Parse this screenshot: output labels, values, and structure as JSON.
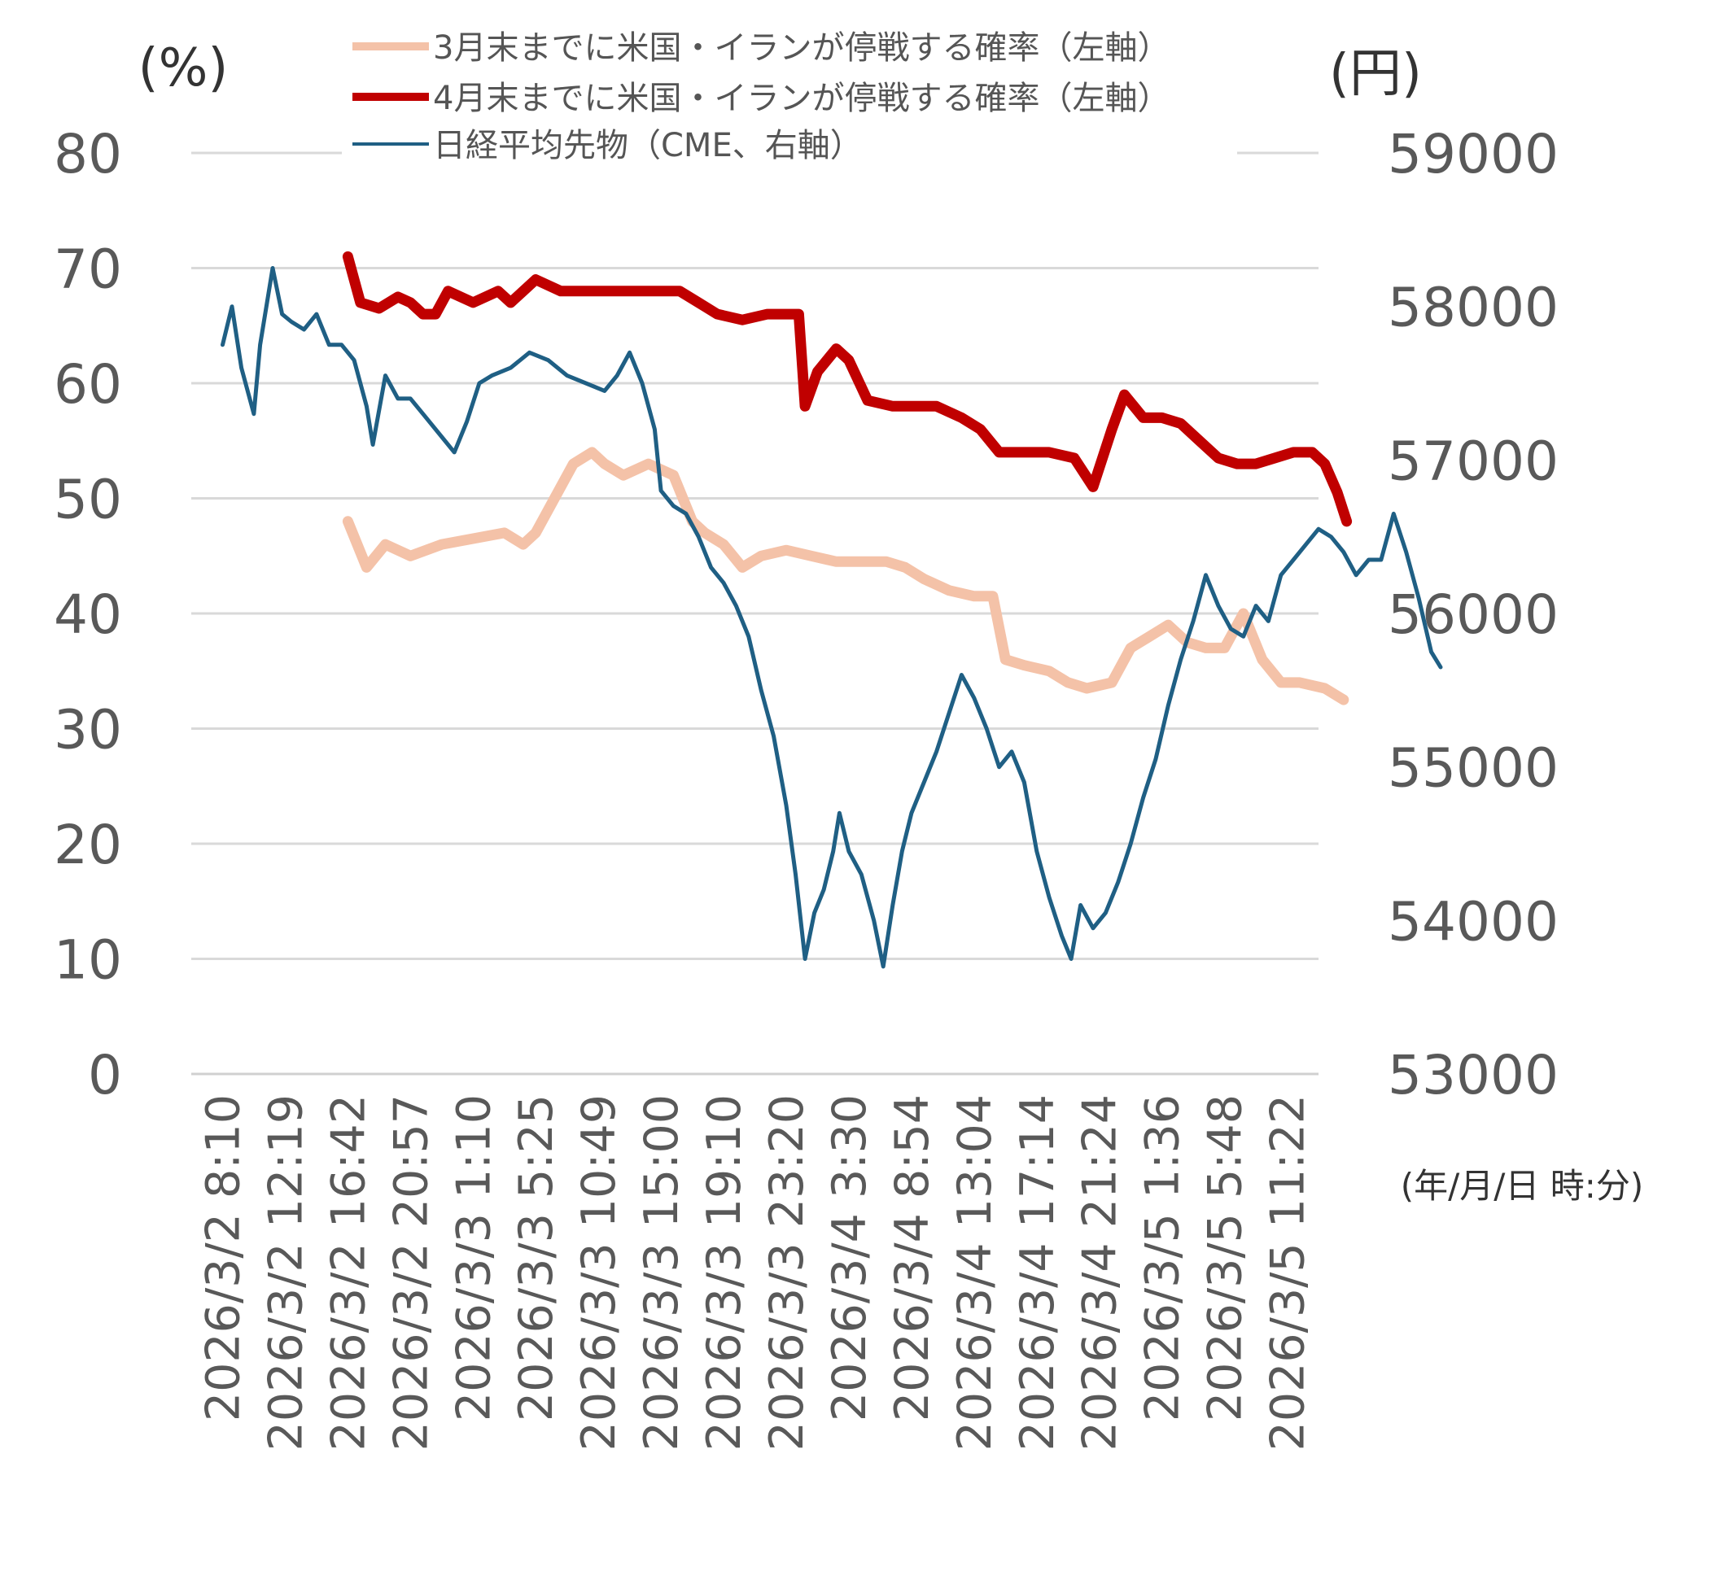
{
  "chart_data": {
    "type": "line",
    "left_axis_unit": "(%)",
    "right_axis_unit": "(円)",
    "x_axis_unit": "(年/月/日 時:分)",
    "left_axis": {
      "min": 0,
      "max": 80,
      "ticks": [
        "0",
        "10",
        "20",
        "30",
        "40",
        "50",
        "60",
        "70",
        "80"
      ]
    },
    "right_axis": {
      "min": 53000,
      "max": 59000,
      "ticks": [
        "53000",
        "54000",
        "55000",
        "56000",
        "57000",
        "58000",
        "59000"
      ]
    },
    "x_tick_labels": [
      "2026/3/2 8:10",
      "2026/3/2 12:19",
      "2026/3/2 16:42",
      "2026/3/2 20:57",
      "2026/3/3 1:10",
      "2026/3/3 5:25",
      "2026/3/3 10:49",
      "2026/3/3 15:00",
      "2026/3/3 19:10",
      "2026/3/3 23:20",
      "2026/3/4 3:30",
      "2026/3/4 8:54",
      "2026/3/4 13:04",
      "2026/3/4 17:14",
      "2026/3/4 21:24",
      "2026/3/5 1:36",
      "2026/3/5 5:48",
      "2026/3/5 11:22"
    ],
    "grid": true,
    "legend_position": "top",
    "series": [
      {
        "name": "3月末までに米国・イランが停戦する確率（左軸）",
        "axis": "left",
        "color": "#F4C2A8",
        "points": [
          [
            2.0,
            48
          ],
          [
            2.3,
            44
          ],
          [
            2.6,
            46
          ],
          [
            3.0,
            45
          ],
          [
            3.5,
            46
          ],
          [
            4.0,
            46.5
          ],
          [
            4.5,
            47
          ],
          [
            4.8,
            46
          ],
          [
            5.0,
            47
          ],
          [
            5.3,
            50
          ],
          [
            5.6,
            53
          ],
          [
            5.9,
            54
          ],
          [
            6.1,
            53
          ],
          [
            6.4,
            52
          ],
          [
            6.8,
            53
          ],
          [
            7.2,
            52
          ],
          [
            7.5,
            48
          ],
          [
            7.7,
            47
          ],
          [
            8.0,
            46
          ],
          [
            8.3,
            44
          ],
          [
            8.6,
            45
          ],
          [
            9.0,
            45.5
          ],
          [
            9.4,
            45
          ],
          [
            9.8,
            44.5
          ],
          [
            10.2,
            44.5
          ],
          [
            10.6,
            44.5
          ],
          [
            10.9,
            44
          ],
          [
            11.2,
            43
          ],
          [
            11.6,
            42
          ],
          [
            12.0,
            41.5
          ],
          [
            12.3,
            41.5
          ],
          [
            12.5,
            36
          ],
          [
            12.8,
            35.5
          ],
          [
            13.2,
            35
          ],
          [
            13.5,
            34
          ],
          [
            13.8,
            33.5
          ],
          [
            14.2,
            34
          ],
          [
            14.5,
            37
          ],
          [
            14.8,
            38
          ],
          [
            15.1,
            39
          ],
          [
            15.4,
            37.5
          ],
          [
            15.7,
            37
          ],
          [
            16.0,
            37
          ],
          [
            16.3,
            40
          ],
          [
            16.6,
            36
          ],
          [
            16.9,
            34
          ],
          [
            17.2,
            34
          ],
          [
            17.6,
            33.5
          ],
          [
            17.9,
            32.5
          ]
        ]
      },
      {
        "name": "4月末までに米国・イランが停戦する確率（左軸）",
        "axis": "left",
        "color": "#C00000",
        "points": [
          [
            2.0,
            71
          ],
          [
            2.2,
            67
          ],
          [
            2.5,
            66.5
          ],
          [
            2.8,
            67.5
          ],
          [
            3.0,
            67
          ],
          [
            3.2,
            66
          ],
          [
            3.4,
            66
          ],
          [
            3.6,
            68
          ],
          [
            4.0,
            67
          ],
          [
            4.4,
            68
          ],
          [
            4.6,
            67
          ],
          [
            4.8,
            68
          ],
          [
            5.0,
            69
          ],
          [
            5.4,
            68
          ],
          [
            5.8,
            68
          ],
          [
            6.2,
            68
          ],
          [
            6.6,
            68
          ],
          [
            7.0,
            68
          ],
          [
            7.3,
            68
          ],
          [
            7.6,
            67
          ],
          [
            7.9,
            66
          ],
          [
            8.3,
            65.5
          ],
          [
            8.7,
            66
          ],
          [
            9.0,
            66
          ],
          [
            9.2,
            66
          ],
          [
            9.3,
            58
          ],
          [
            9.5,
            61
          ],
          [
            9.8,
            63
          ],
          [
            10.0,
            62
          ],
          [
            10.3,
            58.5
          ],
          [
            10.7,
            58
          ],
          [
            11.0,
            58
          ],
          [
            11.4,
            58
          ],
          [
            11.8,
            57
          ],
          [
            12.1,
            56
          ],
          [
            12.4,
            54
          ],
          [
            12.8,
            54
          ],
          [
            13.2,
            54
          ],
          [
            13.6,
            53.5
          ],
          [
            13.9,
            51
          ],
          [
            14.2,
            56
          ],
          [
            14.4,
            59
          ],
          [
            14.7,
            57
          ],
          [
            15.0,
            57
          ],
          [
            15.3,
            56.5
          ],
          [
            15.6,
            55
          ],
          [
            15.9,
            53.5
          ],
          [
            16.2,
            53
          ],
          [
            16.5,
            53
          ],
          [
            16.8,
            53.5
          ],
          [
            17.1,
            54
          ],
          [
            17.4,
            54
          ],
          [
            17.6,
            53
          ],
          [
            17.8,
            50.5
          ],
          [
            17.95,
            48
          ]
        ]
      },
      {
        "name": "日経平均先物（CME、右軸）",
        "axis": "right",
        "color": "#1F5F84",
        "points": [
          [
            0.0,
            57750
          ],
          [
            0.15,
            58000
          ],
          [
            0.3,
            57600
          ],
          [
            0.5,
            57300
          ],
          [
            0.6,
            57750
          ],
          [
            0.8,
            58250
          ],
          [
            0.95,
            57950
          ],
          [
            1.1,
            57900
          ],
          [
            1.3,
            57850
          ],
          [
            1.5,
            57950
          ],
          [
            1.7,
            57750
          ],
          [
            1.9,
            57750
          ],
          [
            2.1,
            57650
          ],
          [
            2.3,
            57350
          ],
          [
            2.4,
            57100
          ],
          [
            2.6,
            57550
          ],
          [
            2.8,
            57400
          ],
          [
            3.0,
            57400
          ],
          [
            3.2,
            57300
          ],
          [
            3.5,
            57150
          ],
          [
            3.7,
            57050
          ],
          [
            3.9,
            57250
          ],
          [
            4.1,
            57500
          ],
          [
            4.3,
            57550
          ],
          [
            4.6,
            57600
          ],
          [
            4.9,
            57700
          ],
          [
            5.2,
            57650
          ],
          [
            5.5,
            57550
          ],
          [
            5.8,
            57500
          ],
          [
            6.1,
            57450
          ],
          [
            6.3,
            57550
          ],
          [
            6.5,
            57700
          ],
          [
            6.7,
            57500
          ],
          [
            6.9,
            57200
          ],
          [
            7.0,
            56800
          ],
          [
            7.2,
            56700
          ],
          [
            7.4,
            56650
          ],
          [
            7.6,
            56500
          ],
          [
            7.8,
            56300
          ],
          [
            8.0,
            56200
          ],
          [
            8.2,
            56050
          ],
          [
            8.4,
            55850
          ],
          [
            8.6,
            55500
          ],
          [
            8.8,
            55200
          ],
          [
            9.0,
            54750
          ],
          [
            9.15,
            54300
          ],
          [
            9.3,
            53750
          ],
          [
            9.45,
            54050
          ],
          [
            9.6,
            54200
          ],
          [
            9.75,
            54450
          ],
          [
            9.85,
            54700
          ],
          [
            10.0,
            54450
          ],
          [
            10.2,
            54300
          ],
          [
            10.4,
            54000
          ],
          [
            10.55,
            53700
          ],
          [
            10.7,
            54100
          ],
          [
            10.85,
            54450
          ],
          [
            11.0,
            54700
          ],
          [
            11.2,
            54900
          ],
          [
            11.4,
            55100
          ],
          [
            11.6,
            55350
          ],
          [
            11.8,
            55600
          ],
          [
            12.0,
            55450
          ],
          [
            12.2,
            55250
          ],
          [
            12.4,
            55000
          ],
          [
            12.6,
            55100
          ],
          [
            12.8,
            54900
          ],
          [
            13.0,
            54450
          ],
          [
            13.2,
            54150
          ],
          [
            13.4,
            53900
          ],
          [
            13.55,
            53750
          ],
          [
            13.7,
            54100
          ],
          [
            13.9,
            53950
          ],
          [
            14.1,
            54050
          ],
          [
            14.3,
            54250
          ],
          [
            14.5,
            54500
          ],
          [
            14.7,
            54800
          ],
          [
            14.9,
            55050
          ],
          [
            15.1,
            55400
          ],
          [
            15.3,
            55700
          ],
          [
            15.5,
            55950
          ],
          [
            15.7,
            56250
          ],
          [
            15.9,
            56050
          ],
          [
            16.1,
            55900
          ],
          [
            16.3,
            55850
          ],
          [
            16.5,
            56050
          ],
          [
            16.7,
            55950
          ],
          [
            16.9,
            56250
          ],
          [
            17.1,
            56350
          ],
          [
            17.3,
            56450
          ],
          [
            17.5,
            56550
          ],
          [
            17.7,
            56500
          ],
          [
            17.9,
            56400
          ],
          [
            18.1,
            56250
          ],
          [
            18.3,
            56350
          ],
          [
            18.5,
            56350
          ],
          [
            18.7,
            56650
          ],
          [
            18.9,
            56400
          ],
          [
            19.1,
            56100
          ],
          [
            19.3,
            55750
          ],
          [
            19.45,
            55650
          ]
        ]
      }
    ]
  }
}
